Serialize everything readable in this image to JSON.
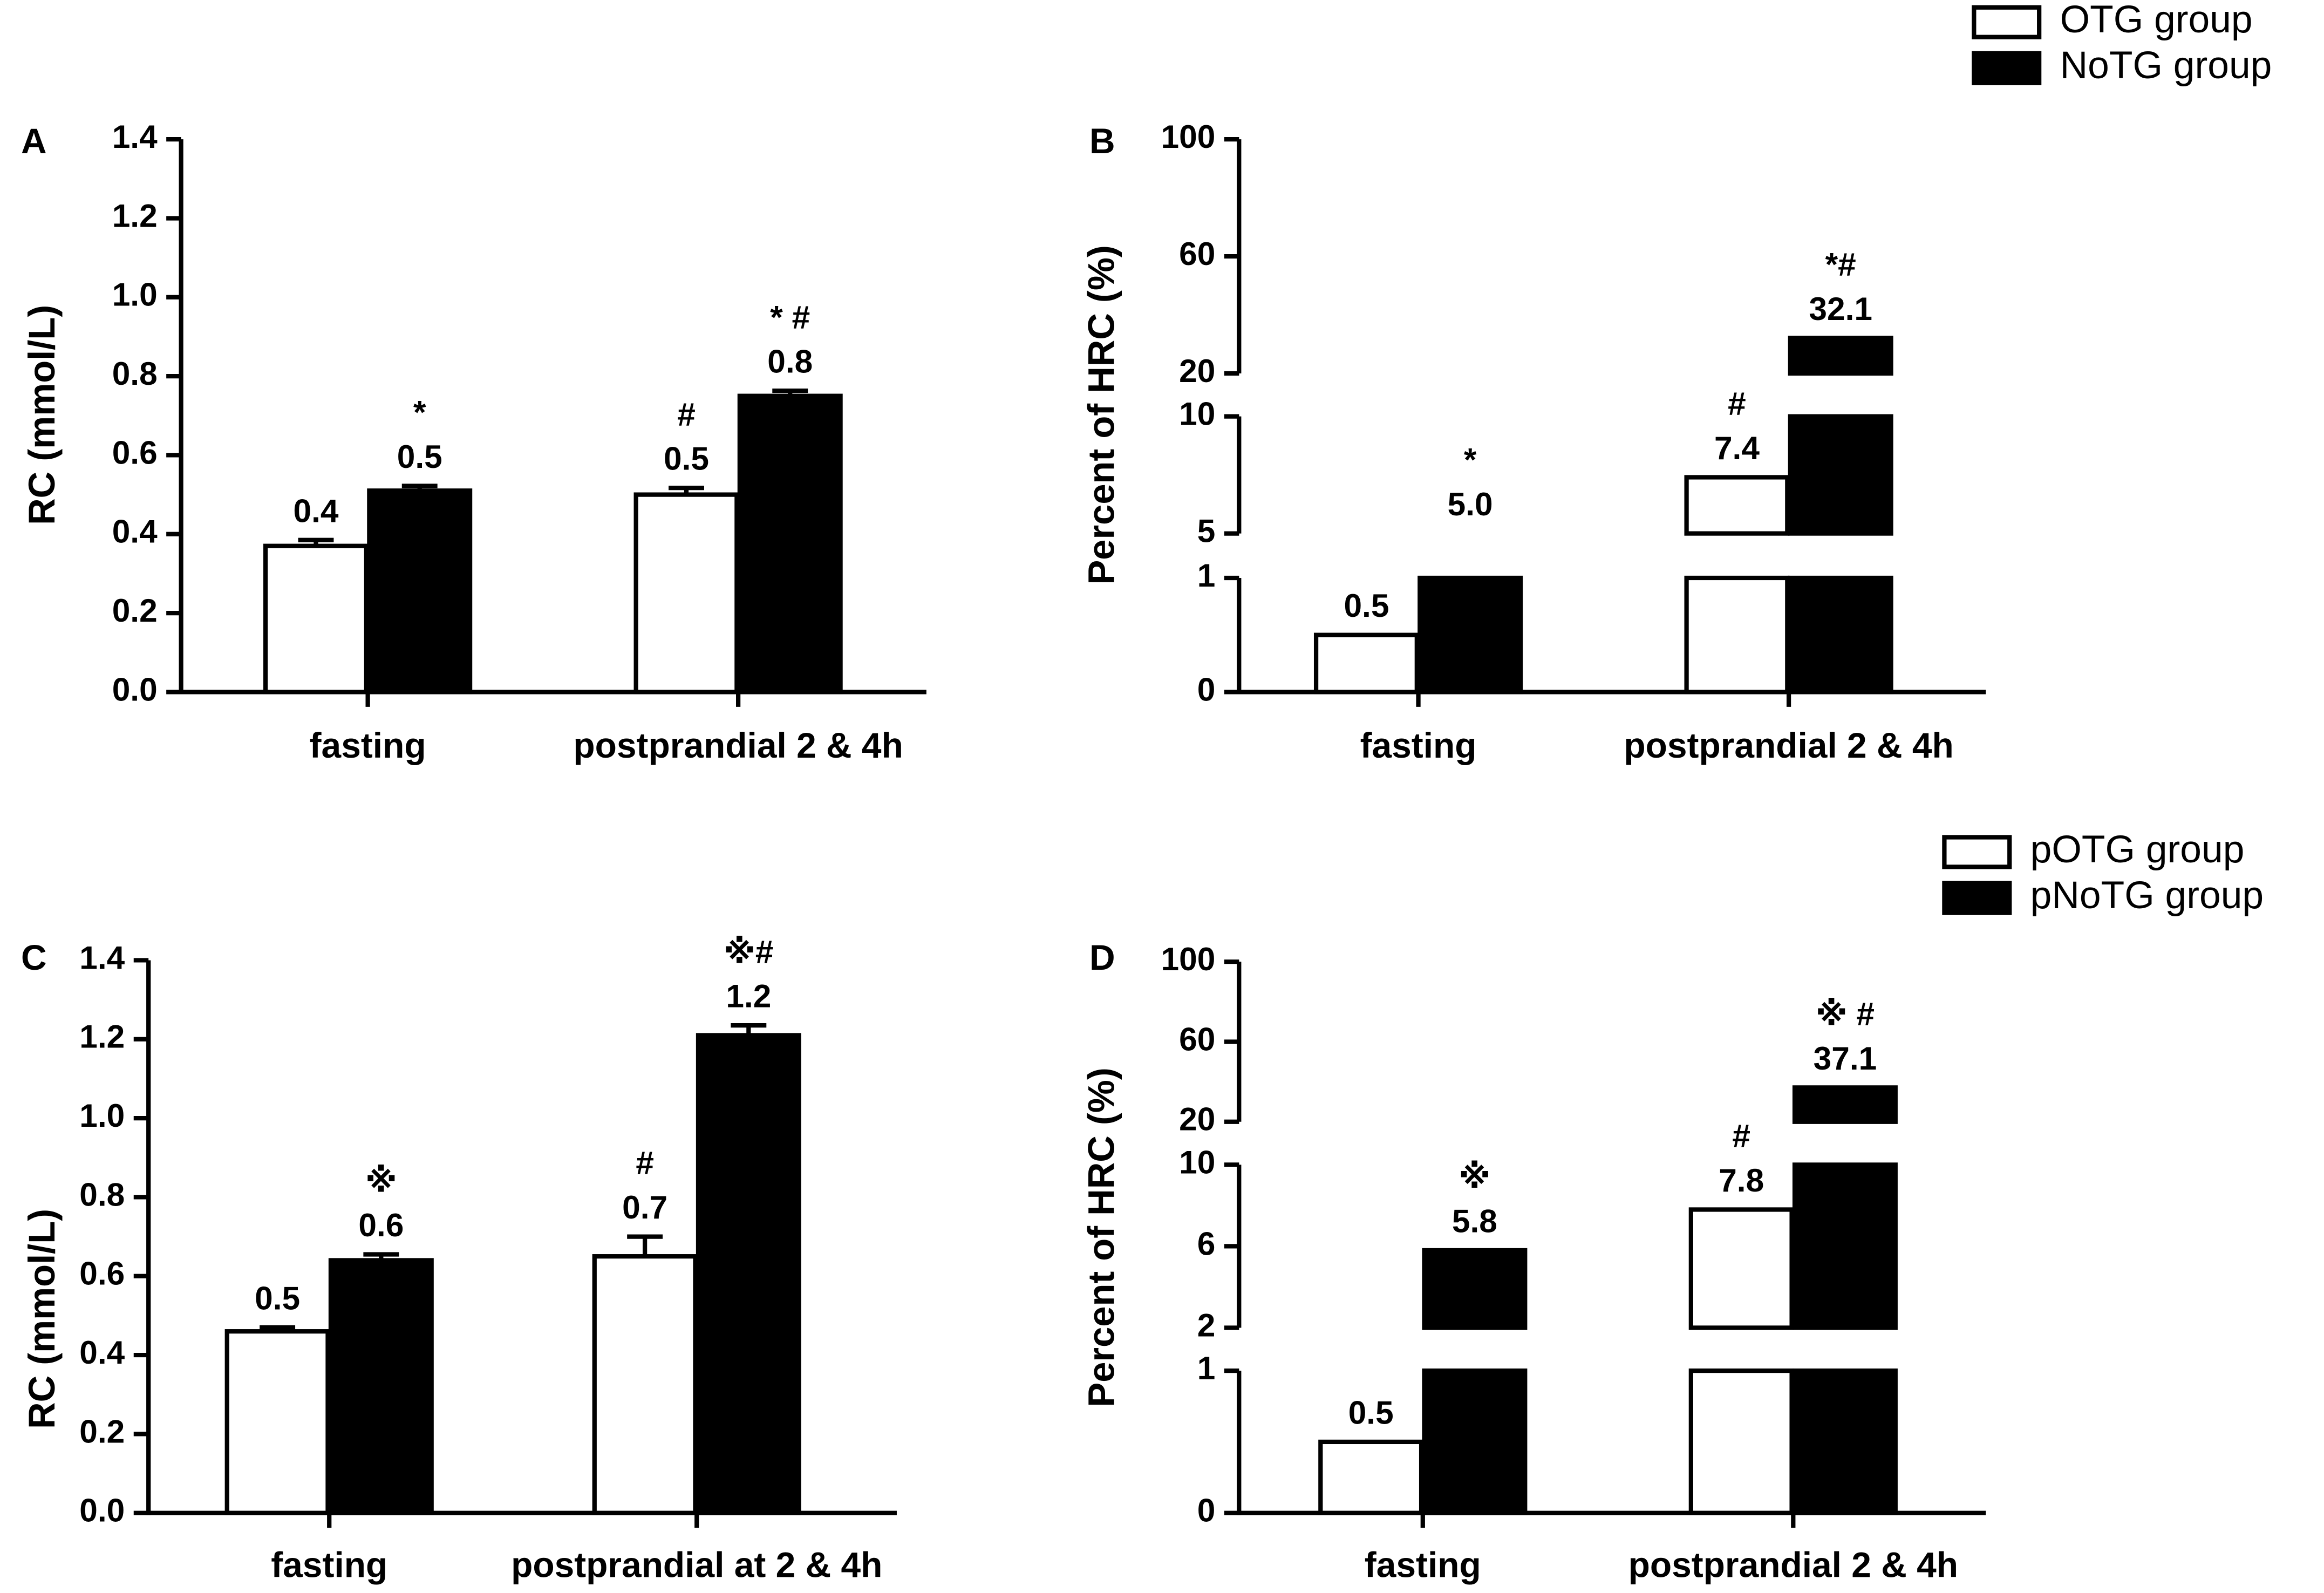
{
  "chart_data": [
    {
      "type": "bar",
      "panel": "A",
      "y_label": "RC (mmol/L)",
      "categories": [
        "fasting",
        "postprandial 2 & 4h"
      ],
      "series": [
        {
          "color": "#ffffff",
          "values": [
            0.37,
            0.5
          ],
          "errors": [
            0.015,
            0.017
          ],
          "value_labels": [
            "0.4",
            "0.5"
          ]
        },
        {
          "color": "#000000",
          "values": [
            0.51,
            0.75
          ],
          "errors": [
            0.012,
            0.013
          ],
          "value_labels": [
            "0.5",
            "0.8"
          ]
        }
      ],
      "annotations": [
        {
          "text": "*",
          "series": 1,
          "index": 0
        },
        {
          "text": "#",
          "series": 0,
          "index": 1
        },
        {
          "text": "* #",
          "series": 1,
          "index": 1
        }
      ],
      "ylim": [
        0,
        1.4
      ],
      "yticks": [
        {
          "value": 0,
          "label": "0.0"
        },
        0.2,
        0.4,
        0.6,
        0.8,
        {
          "value": 1,
          "label": "1.0"
        },
        1.2,
        1.4
      ]
    },
    {
      "type": "broken-bar",
      "panel": "B",
      "y_label": "Percent of HRC (%)",
      "categories": [
        "fasting",
        "postprandial 2 & 4h"
      ],
      "series": [
        {
          "name": "OTG group",
          "color": "#ffffff",
          "values": [
            0.5,
            7.4
          ],
          "value_labels": [
            "0.5",
            "7.4"
          ]
        },
        {
          "name": "NoTG group",
          "color": "#000000",
          "values": [
            5,
            32.1
          ],
          "value_labels": [
            "5.0",
            "32.1"
          ]
        }
      ],
      "annotations": [
        {
          "text": "*",
          "series": 1,
          "index": 0
        },
        {
          "text": "#",
          "series": 0,
          "index": 1
        },
        {
          "text": "*#",
          "series": 1,
          "index": 1
        }
      ],
      "ylim": [
        0,
        100
      ],
      "y_segments": [
        [
          0,
          1
        ],
        [
          5,
          10
        ],
        [
          20,
          100
        ]
      ],
      "yticks": [
        0,
        1,
        5,
        10,
        20,
        60,
        100
      ],
      "legend": "top-right"
    },
    {
      "type": "bar",
      "panel": "C",
      "y_label": "RC (mmol/L)",
      "categories": [
        "fasting",
        "postprandial at 2 & 4h"
      ],
      "series": [
        {
          "color": "#ffffff",
          "values": [
            0.46,
            0.65
          ],
          "errors": [
            0.01,
            0.05
          ],
          "value_labels": [
            "0.5",
            "0.7"
          ]
        },
        {
          "color": "#000000",
          "values": [
            0.64,
            1.21
          ],
          "errors": [
            0.015,
            0.025
          ],
          "value_labels": [
            "0.6",
            "1.2"
          ]
        }
      ],
      "annotations": [
        {
          "text": "※",
          "series": 1,
          "index": 0
        },
        {
          "text": "#",
          "series": 0,
          "index": 1
        },
        {
          "text": "※#",
          "series": 1,
          "index": 1
        }
      ],
      "ylim": [
        0,
        1.4
      ],
      "yticks": [
        {
          "value": 0,
          "label": "0.0"
        },
        0.2,
        0.4,
        0.6,
        0.8,
        {
          "value": 1,
          "label": "1.0"
        },
        1.2,
        1.4
      ]
    },
    {
      "type": "broken-bar",
      "panel": "D",
      "y_label": "Percent of HRC (%)",
      "categories": [
        "fasting",
        "postprandial 2 & 4h"
      ],
      "series": [
        {
          "name": "pOTG group",
          "color": "#ffffff",
          "values": [
            0.5,
            7.8
          ],
          "value_labels": [
            "0.5",
            "7.8"
          ]
        },
        {
          "name": "pNoTG group",
          "color": "#000000",
          "values": [
            5.8,
            37.1
          ],
          "value_labels": [
            "5.8",
            "37.1"
          ]
        }
      ],
      "annotations": [
        {
          "text": "※",
          "series": 1,
          "index": 0
        },
        {
          "text": "#",
          "series": 0,
          "index": 1
        },
        {
          "text": "※ #",
          "series": 1,
          "index": 1
        }
      ],
      "ylim": [
        0,
        100
      ],
      "y_segments": [
        [
          0,
          1
        ],
        [
          2,
          10
        ],
        [
          20,
          100
        ]
      ],
      "yticks": [
        0,
        1,
        2,
        6,
        10,
        20,
        60,
        100
      ],
      "legend": "top-right"
    }
  ]
}
